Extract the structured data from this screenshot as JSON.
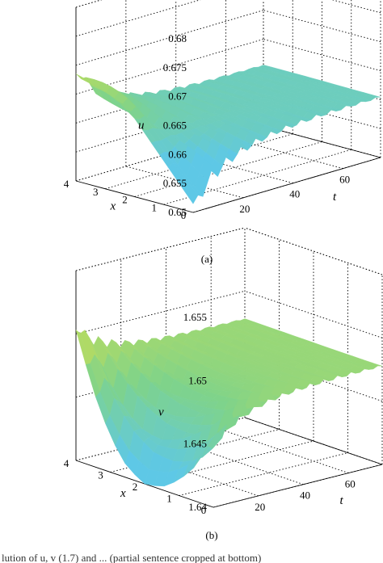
{
  "caption_text": "lution of u, v (1.7) and ... (partial sentence cropped at bottom)",
  "colors": {
    "surface_low": "#5ec8e6",
    "surface_mid": "#7fd38a",
    "surface_high": "#d6e04a",
    "ridge": "#e4e23a",
    "grid": "#000000"
  },
  "chart_data": [
    {
      "type": "surface",
      "panel_label": "(a)",
      "zlabel": "u",
      "xlabel": "x",
      "tlabel": "t",
      "z_ticks": [
        "0.65",
        "0.655",
        "0.66",
        "0.665",
        "0.67",
        "0.675",
        "0.68"
      ],
      "x_ticks": [
        "0",
        "1",
        "2",
        "3",
        "4"
      ],
      "t_ticks": [
        "20",
        "40",
        "60"
      ],
      "zlim": [
        0.65,
        0.68
      ],
      "xlim": [
        0,
        4
      ],
      "tlim": [
        0,
        75
      ],
      "grid": true,
      "profile_x": [
        0,
        0.5,
        1,
        1.5,
        2,
        2.5,
        3,
        3.5,
        4
      ],
      "profile_t0": [
        0.6515,
        0.6545,
        0.6575,
        0.6605,
        0.6635,
        0.6655,
        0.6668,
        0.6678,
        0.6685
      ],
      "equilibrium": 0.6605,
      "oscillation_t_end": 30
    },
    {
      "type": "surface",
      "panel_label": "(b)",
      "zlabel": "v",
      "xlabel": "x",
      "tlabel": "t",
      "z_ticks": [
        "1.64",
        "1.645",
        "1.65",
        "1.655"
      ],
      "x_ticks": [
        "0",
        "1",
        "2",
        "3",
        "4"
      ],
      "t_ticks": [
        "20",
        "40",
        "60"
      ],
      "zlim": [
        1.64,
        1.655
      ],
      "xlim": [
        0,
        4
      ],
      "tlim": [
        0,
        75
      ],
      "grid": true,
      "profile_x": [
        0,
        0.5,
        1,
        1.5,
        2,
        2.5,
        3,
        3.5,
        4
      ],
      "profile_t0": [
        1.6455,
        1.6428,
        1.6412,
        1.6402,
        1.64,
        1.6408,
        1.6428,
        1.646,
        1.6503
      ],
      "equilibrium": 1.6478,
      "oscillation_t_end": 30
    }
  ]
}
